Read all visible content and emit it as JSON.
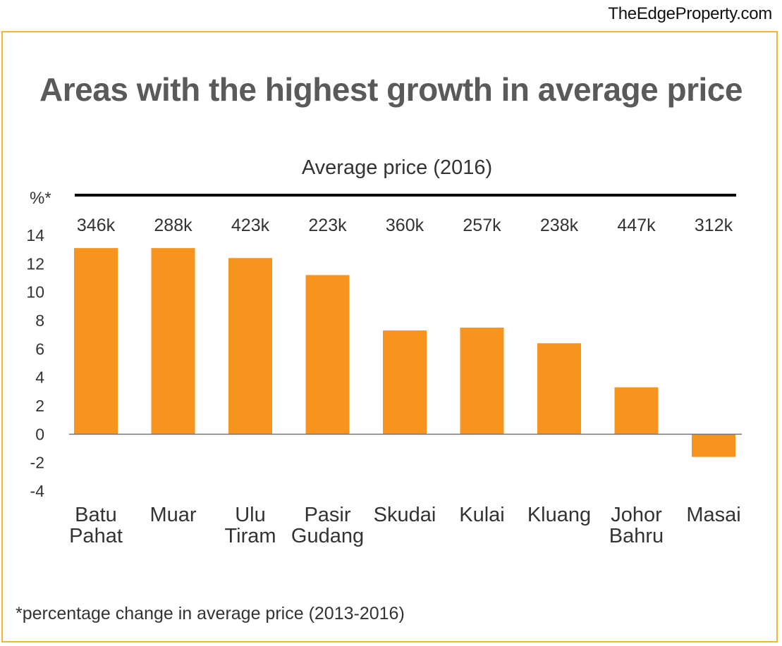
{
  "brand": "TheEdgeProperty.com",
  "footnote": "*percentage change in average price (2013-2016)",
  "colors": {
    "bar": "#f7941d",
    "frame": "#f5b52d",
    "title": "#5a5a5a",
    "text": "#333333"
  },
  "chart_data": {
    "type": "bar",
    "title": "Areas with the highest growth in average price",
    "subtitle": "Average price (2016)",
    "ylabel": "%*",
    "xlabel": "",
    "ylim": [
      -4,
      14
    ],
    "yticks": [
      14,
      12,
      10,
      8,
      6,
      4,
      2,
      0,
      -2,
      -4
    ],
    "grid": false,
    "categories": [
      [
        "Batu",
        "Pahat"
      ],
      [
        "Muar"
      ],
      [
        "Ulu",
        "Tiram"
      ],
      [
        "Pasir",
        "Gudang"
      ],
      [
        "Skudai"
      ],
      [
        "Kulai"
      ],
      [
        "Kluang"
      ],
      [
        "Johor",
        "Bahru"
      ],
      [
        "Masai"
      ]
    ],
    "values": [
      13.1,
      13.1,
      12.4,
      11.2,
      7.3,
      7.5,
      6.4,
      3.3,
      -1.6
    ],
    "price_labels": [
      "346k",
      "288k",
      "423k",
      "223k",
      "360k",
      "257k",
      "238k",
      "447k",
      "312k"
    ]
  }
}
